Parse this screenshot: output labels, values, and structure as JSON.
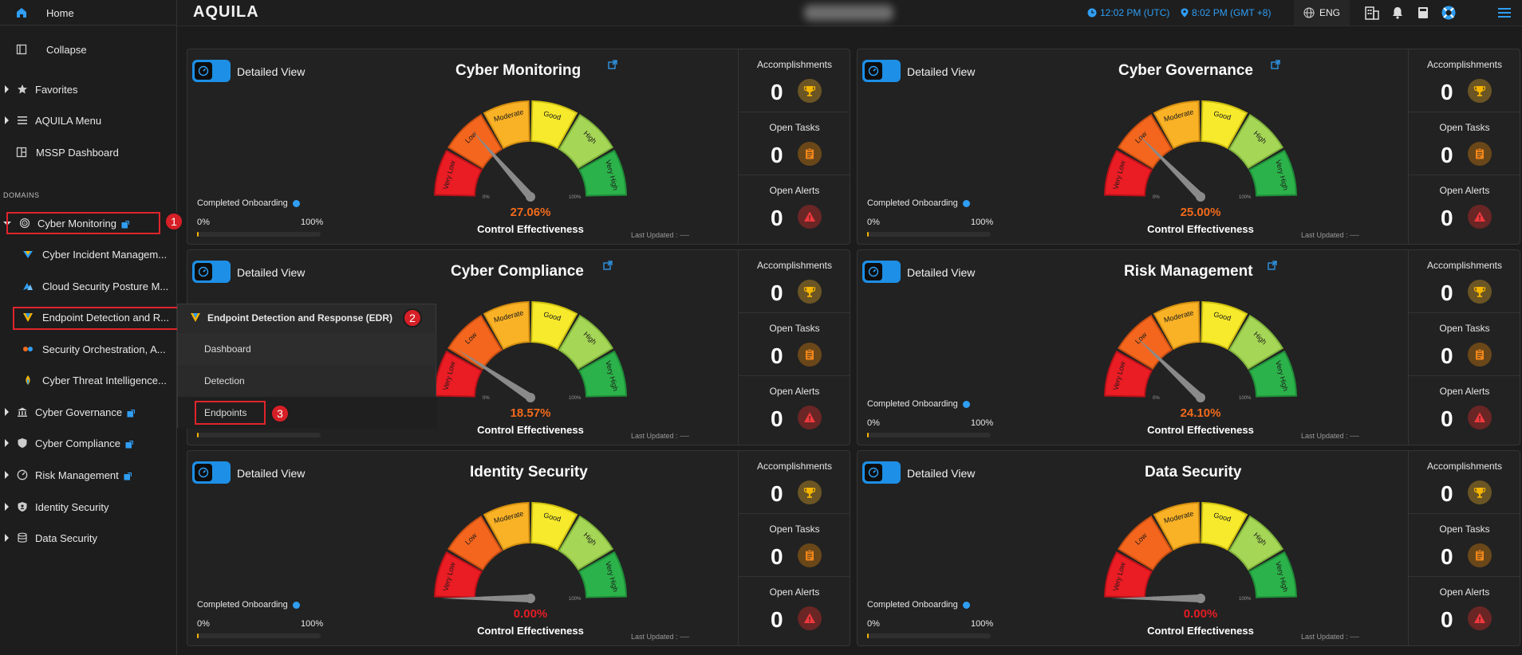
{
  "sidebar": {
    "home": "Home",
    "collapse": "Collapse",
    "favorites": "Favorites",
    "aquila_menu": "AQUILA Menu",
    "mssp": "MSSP Dashboard",
    "domains_label": "DOMAINS",
    "cyber_monitoring": "Cyber Monitoring",
    "sub_items": [
      "Cyber Incident Managem...",
      "Cloud Security Posture M...",
      "Endpoint Detection and R...",
      "Security Orchestration, A...",
      "Cyber Threat Intelligence..."
    ],
    "cyber_governance": "Cyber Governance",
    "cyber_compliance": "Cyber Compliance",
    "risk_management": "Risk Management",
    "identity_security": "Identity Security",
    "data_security": "Data Security"
  },
  "flyout": {
    "title": "Endpoint Detection and Response (EDR)",
    "items": [
      "Dashboard",
      "Detection",
      "Endpoints"
    ]
  },
  "annotations": [
    "1",
    "2",
    "3"
  ],
  "topbar": {
    "logo": "AQUILA",
    "utc_time": "12:02 PM (UTC)",
    "local_time": "8:02 PM (GMT +8)",
    "language": "ENG"
  },
  "common": {
    "detailed_view": "Detailed View",
    "completed_onboarding": "Completed Onboarding",
    "onb_min": "0%",
    "onb_max": "100%",
    "control_effectiveness": "Control Effectiveness",
    "last_updated": "Last Updated : ----",
    "accomplishments": "Accomplishments",
    "open_tasks": "Open Tasks",
    "open_alerts": "Open Alerts",
    "gauge_labels": [
      "Very Low",
      "Low",
      "Moderate",
      "Good",
      "High",
      "Very High"
    ],
    "gauge_min": "0%",
    "gauge_max": "100%"
  },
  "cards": [
    {
      "title": "Cyber Monitoring",
      "percent": "27.06%",
      "value": 27.06,
      "accomplishments": "0",
      "open_tasks": "0",
      "open_alerts": "0",
      "pct_color": "#f26a1b"
    },
    {
      "title": "Cyber Governance",
      "percent": "25.00%",
      "value": 25.0,
      "accomplishments": "0",
      "open_tasks": "0",
      "open_alerts": "0",
      "pct_color": "#f26a1b"
    },
    {
      "title": "Cyber Compliance",
      "percent": "18.57%",
      "value": 18.57,
      "accomplishments": "0",
      "open_tasks": "0",
      "open_alerts": "0",
      "pct_color": "#f26a1b"
    },
    {
      "title": "Risk Management",
      "percent": "24.10%",
      "value": 24.1,
      "accomplishments": "0",
      "open_tasks": "0",
      "open_alerts": "0",
      "pct_color": "#f26a1b"
    },
    {
      "title": "Identity Security",
      "percent": "0.00%",
      "value": 0,
      "accomplishments": "0",
      "open_tasks": "0",
      "open_alerts": "0",
      "pct_color": "#e21d24"
    },
    {
      "title": "Data Security",
      "percent": "0.00%",
      "value": 0,
      "accomplishments": "0",
      "open_tasks": "0",
      "open_alerts": "0",
      "pct_color": "#e21d24"
    }
  ]
}
